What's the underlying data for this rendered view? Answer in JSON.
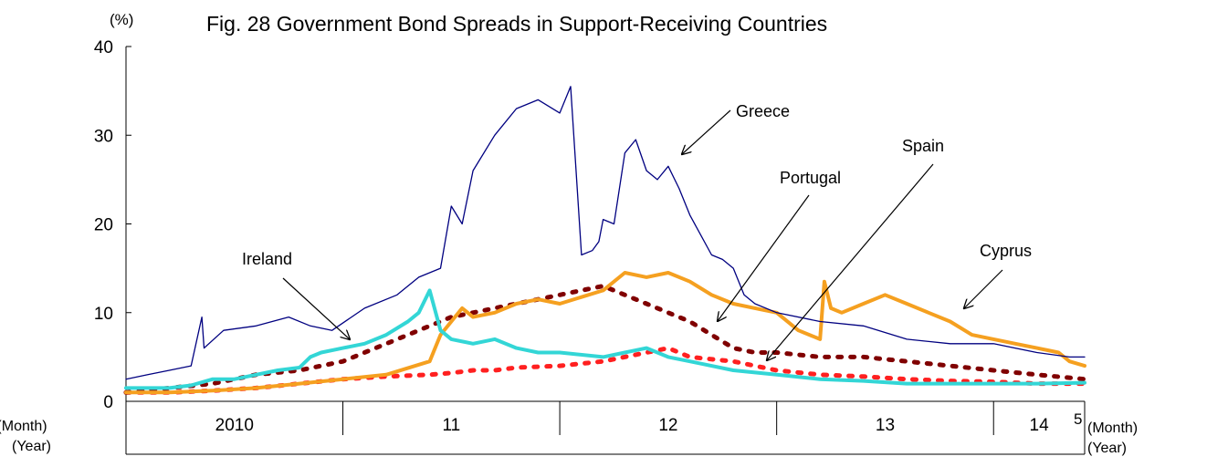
{
  "chart_data": {
    "type": "line",
    "title": "Fig. 28 Government Bond Spreads in Support-Receiving Countries",
    "ylabel": "(%)",
    "ylim": [
      0,
      40
    ],
    "yticks": [
      "0",
      "10",
      "20",
      "30",
      "40"
    ],
    "xlim": [
      2010.0,
      2014.42
    ],
    "year_labels": [
      {
        "label": "2010",
        "year": 2010
      },
      {
        "label": "11",
        "year": 2011
      },
      {
        "label": "12",
        "year": 2012
      },
      {
        "label": "13",
        "year": 2013
      },
      {
        "label": "14",
        "year": 2014
      }
    ],
    "month_end_label": "5",
    "xlabel_left": "(Month)\n(Year)",
    "xlabel_right": "(Month)\n(Year)",
    "grid": false,
    "colors": {
      "Greece": "#000080",
      "Ireland": "#33d6d6",
      "Portugal": "#800000",
      "Spain": "#ff2020",
      "Cyprus": "#f5a020"
    },
    "series": [
      {
        "name": "Greece",
        "style": "thin-line",
        "x": [
          2010.0,
          2010.1,
          2010.2,
          2010.3,
          2010.35,
          2010.36,
          2010.45,
          2010.6,
          2010.75,
          2010.85,
          2010.95,
          2011.1,
          2011.25,
          2011.35,
          2011.4,
          2011.45,
          2011.5,
          2011.55,
          2011.6,
          2011.7,
          2011.8,
          2011.9,
          2012.0,
          2012.05,
          2012.1,
          2012.15,
          2012.18,
          2012.2,
          2012.25,
          2012.3,
          2012.35,
          2012.4,
          2012.45,
          2012.5,
          2012.55,
          2012.6,
          2012.7,
          2012.75,
          2012.8,
          2012.85,
          2012.9,
          2013.0,
          2013.2,
          2013.4,
          2013.6,
          2013.8,
          2014.0,
          2014.2,
          2014.35,
          2014.42
        ],
        "y": [
          2.5,
          3.0,
          3.5,
          4.0,
          9.5,
          6.0,
          8.0,
          8.5,
          9.5,
          8.5,
          8.0,
          10.5,
          12.0,
          14.0,
          14.5,
          15.0,
          22.0,
          20.0,
          26.0,
          30.0,
          33.0,
          34.0,
          32.5,
          35.5,
          16.5,
          17.0,
          18.0,
          20.5,
          20.0,
          28.0,
          29.5,
          26.0,
          25.0,
          26.5,
          24.0,
          21.0,
          16.5,
          16.0,
          15.0,
          12.0,
          11.0,
          10.0,
          9.0,
          8.5,
          7.0,
          6.5,
          6.5,
          5.5,
          5.0,
          5.0
        ]
      },
      {
        "name": "Ireland",
        "style": "thick-line",
        "x": [
          2010.0,
          2010.1,
          2010.2,
          2010.3,
          2010.4,
          2010.5,
          2010.6,
          2010.7,
          2010.8,
          2010.85,
          2010.9,
          2011.0,
          2011.1,
          2011.2,
          2011.3,
          2011.35,
          2011.4,
          2011.45,
          2011.5,
          2011.6,
          2011.7,
          2011.8,
          2011.9,
          2012.0,
          2012.2,
          2012.3,
          2012.4,
          2012.5,
          2012.6,
          2012.8,
          2013.0,
          2013.2,
          2013.4,
          2013.6,
          2013.8,
          2014.0,
          2014.2,
          2014.42
        ],
        "y": [
          1.5,
          1.5,
          1.5,
          1.8,
          2.5,
          2.5,
          3.0,
          3.5,
          3.8,
          5.0,
          5.5,
          6.0,
          6.5,
          7.5,
          9.0,
          10.0,
          12.5,
          8.0,
          7.0,
          6.5,
          7.0,
          6.0,
          5.5,
          5.5,
          5.0,
          5.5,
          6.0,
          5.0,
          4.5,
          3.5,
          3.0,
          2.5,
          2.3,
          2.0,
          2.0,
          2.0,
          2.0,
          2.1
        ]
      },
      {
        "name": "Portugal",
        "style": "dotted-line",
        "x": [
          2010.0,
          2010.2,
          2010.4,
          2010.5,
          2010.6,
          2010.8,
          2011.0,
          2011.2,
          2011.35,
          2011.5,
          2011.6,
          2011.7,
          2011.8,
          2011.9,
          2012.0,
          2012.1,
          2012.2,
          2012.3,
          2012.4,
          2012.5,
          2012.6,
          2012.7,
          2012.8,
          2012.9,
          2013.0,
          2013.2,
          2013.4,
          2013.6,
          2013.8,
          2014.0,
          2014.2,
          2014.42
        ],
        "y": [
          1.0,
          1.5,
          2.0,
          2.5,
          3.0,
          3.5,
          4.5,
          6.5,
          8.0,
          9.5,
          10.0,
          10.5,
          11.0,
          11.5,
          12.0,
          12.5,
          13.0,
          12.0,
          11.0,
          10.0,
          9.0,
          7.5,
          6.0,
          5.5,
          5.5,
          5.0,
          5.0,
          4.5,
          4.0,
          3.5,
          3.0,
          2.5
        ]
      },
      {
        "name": "Spain",
        "style": "dotted-line",
        "x": [
          2010.0,
          2010.2,
          2010.4,
          2010.6,
          2010.8,
          2011.0,
          2011.2,
          2011.4,
          2011.5,
          2011.6,
          2011.7,
          2011.8,
          2012.0,
          2012.2,
          2012.4,
          2012.5,
          2012.6,
          2012.8,
          2013.0,
          2013.2,
          2013.4,
          2013.6,
          2013.8,
          2014.0,
          2014.2,
          2014.42
        ],
        "y": [
          1.0,
          1.0,
          1.2,
          1.5,
          2.0,
          2.5,
          2.8,
          3.0,
          3.2,
          3.5,
          3.5,
          3.8,
          4.0,
          4.5,
          5.5,
          6.0,
          5.0,
          4.5,
          3.5,
          3.0,
          2.8,
          2.5,
          2.3,
          2.2,
          2.0,
          2.0
        ]
      },
      {
        "name": "Cyprus",
        "style": "thick-line",
        "x": [
          2010.0,
          2010.2,
          2010.4,
          2010.6,
          2010.8,
          2011.0,
          2011.2,
          2011.4,
          2011.45,
          2011.5,
          2011.55,
          2011.6,
          2011.7,
          2011.8,
          2011.9,
          2012.0,
          2012.2,
          2012.3,
          2012.4,
          2012.5,
          2012.6,
          2012.7,
          2012.8,
          2012.9,
          2013.0,
          2013.1,
          2013.2,
          2013.22,
          2013.25,
          2013.3,
          2013.4,
          2013.5,
          2013.6,
          2013.7,
          2013.8,
          2013.9,
          2014.0,
          2014.1,
          2014.2,
          2014.3,
          2014.35,
          2014.42
        ],
        "y": [
          1.0,
          1.0,
          1.2,
          1.5,
          2.0,
          2.5,
          3.0,
          4.5,
          7.5,
          9.0,
          10.5,
          9.5,
          10.0,
          11.0,
          11.5,
          11.0,
          12.5,
          14.5,
          14.0,
          14.5,
          13.5,
          12.0,
          11.0,
          10.5,
          10.0,
          8.0,
          7.0,
          13.5,
          10.5,
          10.0,
          11.0,
          12.0,
          11.0,
          10.0,
          9.0,
          7.5,
          7.0,
          6.5,
          6.0,
          5.5,
          4.5,
          4.0
        ]
      }
    ],
    "annotations": [
      {
        "label": "Greece",
        "points_to": "Greece"
      },
      {
        "label": "Portugal",
        "points_to": "Portugal"
      },
      {
        "label": "Spain",
        "points_to": "Spain"
      },
      {
        "label": "Ireland",
        "points_to": "Ireland"
      },
      {
        "label": "Cyprus",
        "points_to": "Cyprus"
      }
    ]
  }
}
